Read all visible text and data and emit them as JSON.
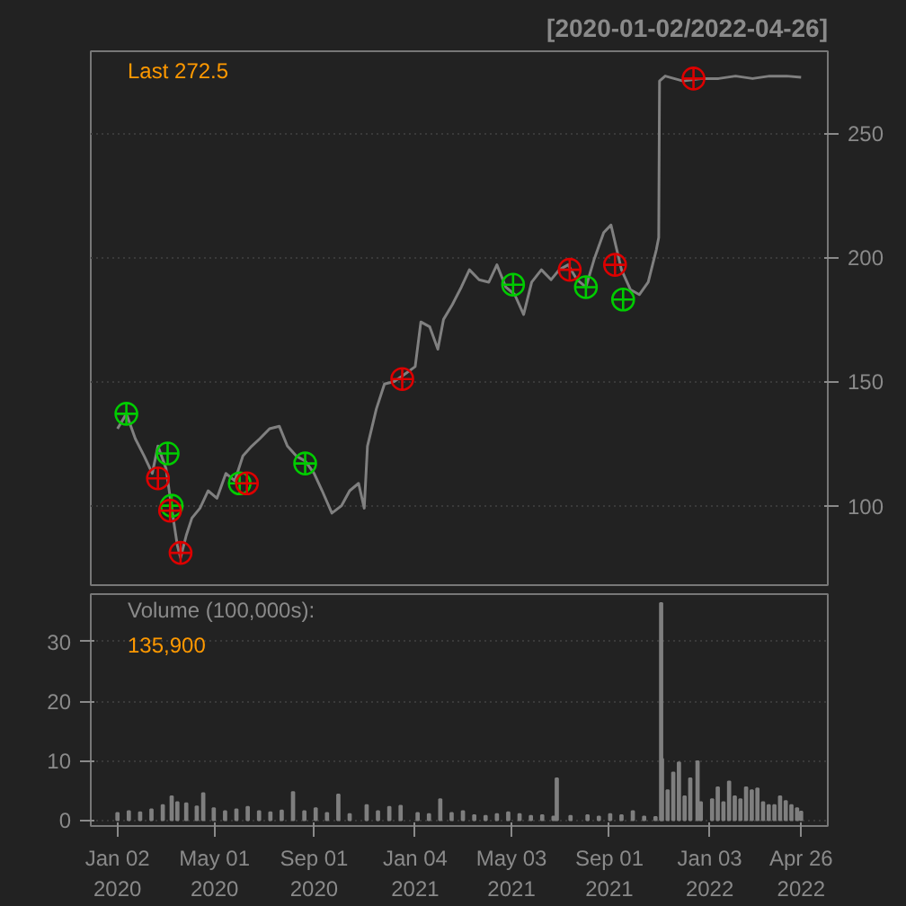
{
  "chart_data": [
    {
      "type": "line",
      "title": "[2020-01-02/2022-04-26]",
      "annotations": [
        "Last 272.5"
      ],
      "xlim": [
        "2019-11-30",
        "2022-05-29"
      ],
      "ylim": [
        68,
        283
      ],
      "yticks": [
        100,
        150,
        200,
        250
      ],
      "grid": "y",
      "tick_labels": "y",
      "line_style": "solid",
      "series": [
        {
          "type": "line",
          "color": "#808080",
          "x": [
            "2020-01-02",
            "2020-01-13",
            "2020-01-24",
            "2020-02-04",
            "2020-02-14",
            "2020-02-21",
            "2020-03-02",
            "2020-03-09",
            "2020-03-16",
            "2020-03-20",
            "2020-03-27",
            "2020-04-03",
            "2020-04-13",
            "2020-04-23",
            "2020-05-04",
            "2020-05-15",
            "2020-05-26",
            "2020-06-05",
            "2020-06-16",
            "2020-06-26",
            "2020-07-08",
            "2020-07-20",
            "2020-07-30",
            "2020-08-10",
            "2020-08-21",
            "2020-09-01",
            "2020-09-11",
            "2020-09-23",
            "2020-10-05",
            "2020-10-15",
            "2020-10-26",
            "2020-11-02",
            "2020-11-06",
            "2020-11-17",
            "2020-11-27",
            "2020-12-09",
            "2020-12-18",
            "2021-01-04",
            "2021-01-11",
            "2021-01-22",
            "2021-02-01",
            "2021-02-08",
            "2021-02-19",
            "2021-03-02",
            "2021-03-12",
            "2021-03-24",
            "2021-04-05",
            "2021-04-15",
            "2021-04-26",
            "2021-05-07",
            "2021-05-18",
            "2021-05-28",
            "2021-06-09",
            "2021-06-21",
            "2021-07-01",
            "2021-07-12",
            "2021-07-23",
            "2021-08-03",
            "2021-08-13",
            "2021-08-25",
            "2021-09-03",
            "2021-09-16",
            "2021-09-27",
            "2021-10-08",
            "2021-10-19",
            "2021-10-29",
            "2021-11-01",
            "2021-11-02",
            "2021-11-09",
            "2021-12-01",
            "2021-12-23",
            "2022-01-14",
            "2022-02-04",
            "2022-02-25",
            "2022-03-18",
            "2022-04-08",
            "2022-04-26"
          ],
          "values": [
            131,
            137,
            127,
            120,
            113,
            124,
            115,
            99,
            84,
            79,
            88,
            95,
            99,
            106,
            103,
            113,
            110,
            120,
            124,
            127,
            131,
            132,
            124,
            120,
            118,
            113,
            106,
            97,
            100,
            106,
            109,
            99,
            124,
            139,
            149,
            150,
            152,
            156,
            174,
            172,
            163,
            175,
            181,
            188,
            195,
            191,
            190,
            197,
            188,
            185,
            177,
            190,
            195,
            191,
            195,
            197,
            191,
            188,
            199,
            210,
            213,
            195,
            187,
            185,
            190,
            203,
            208,
            271,
            273,
            271,
            272,
            272,
            273,
            272,
            273,
            273,
            272.5
          ]
        },
        {
          "type": "scatter",
          "marker": "circle",
          "color": "#00cc00",
          "x": [
            "2020-01-13",
            "2020-03-04",
            "2020-03-09",
            "2020-06-01",
            "2020-08-21",
            "2021-05-05",
            "2021-08-03",
            "2021-09-18"
          ],
          "values": [
            137,
            121,
            100,
            109,
            117,
            189,
            188,
            183
          ]
        },
        {
          "type": "scatter",
          "marker": "circle",
          "color": "#dd0000",
          "x": [
            "2020-02-21",
            "2020-03-07",
            "2020-03-20",
            "2020-06-10",
            "2020-12-19",
            "2021-07-14",
            "2021-09-08",
            "2021-12-14"
          ],
          "values": [
            111,
            98,
            81,
            109,
            151,
            195,
            197,
            272
          ]
        }
      ]
    },
    {
      "type": "bar",
      "annotations": [
        "Volume (100,000s):",
        "135,900"
      ],
      "xlim": [
        "2019-11-30",
        "2022-05-29"
      ],
      "ylim": [
        -1,
        38
      ],
      "yticks": [
        0,
        10,
        20,
        30
      ],
      "grid": "y",
      "xticks": [
        {
          "value": "2020-01-02",
          "label": "Jan 02\n2020"
        },
        {
          "value": "2020-05-01",
          "label": "May 01\n2020"
        },
        {
          "value": "2020-09-01",
          "label": "Sep 01\n2020"
        },
        {
          "value": "2021-01-04",
          "label": "Jan 04\n2021"
        },
        {
          "value": "2021-05-03",
          "label": "May 03\n2021"
        },
        {
          "value": "2021-09-01",
          "label": "Sep 01\n2021"
        },
        {
          "value": "2022-01-03",
          "label": "Jan 03\n2022"
        },
        {
          "value": "2022-04-26",
          "label": "Apr 26\n2022"
        }
      ],
      "series": [
        {
          "color": "#7f7f7f",
          "x": [
            "2020-01-02",
            "2020-01-16",
            "2020-01-30",
            "2020-02-13",
            "2020-02-27",
            "2020-03-09",
            "2020-03-16",
            "2020-03-27",
            "2020-04-09",
            "2020-04-17",
            "2020-04-30",
            "2020-05-14",
            "2020-05-28",
            "2020-06-11",
            "2020-06-25",
            "2020-07-09",
            "2020-07-23",
            "2020-08-06",
            "2020-08-20",
            "2020-09-03",
            "2020-09-17",
            "2020-10-01",
            "2020-10-15",
            "2020-11-05",
            "2020-11-19",
            "2020-12-03",
            "2020-12-17",
            "2021-01-07",
            "2021-01-21",
            "2021-02-04",
            "2021-02-18",
            "2021-03-04",
            "2021-03-18",
            "2021-04-01",
            "2021-04-15",
            "2021-04-29",
            "2021-05-13",
            "2021-05-27",
            "2021-06-10",
            "2021-06-24",
            "2021-06-28",
            "2021-07-15",
            "2021-08-05",
            "2021-08-19",
            "2021-09-02",
            "2021-09-16",
            "2021-09-30",
            "2021-10-14",
            "2021-10-28",
            "2021-11-04",
            "2021-11-05",
            "2021-11-12",
            "2021-11-19",
            "2021-11-26",
            "2021-12-03",
            "2021-12-10",
            "2021-12-19",
            "2021-12-23",
            "2022-01-06",
            "2022-01-13",
            "2022-01-20",
            "2022-01-27",
            "2022-02-03",
            "2022-02-10",
            "2022-02-17",
            "2022-02-24",
            "2022-03-03",
            "2022-03-10",
            "2022-03-17",
            "2022-03-24",
            "2022-03-31",
            "2022-04-07",
            "2022-04-14",
            "2022-04-21",
            "2022-04-26"
          ],
          "values": [
            1.2,
            1.5,
            1.3,
            1.8,
            2.5,
            4.0,
            3.0,
            2.8,
            2.3,
            4.5,
            2.0,
            1.5,
            1.8,
            2.2,
            1.5,
            1.3,
            1.6,
            4.7,
            1.5,
            2.0,
            1.2,
            4.3,
            1.0,
            2.5,
            1.5,
            2.2,
            2.4,
            1.2,
            1.0,
            3.5,
            1.2,
            1.5,
            0.8,
            0.7,
            1.0,
            1.3,
            1.0,
            0.7,
            0.8,
            0.6,
            7.0,
            0.7,
            0.8,
            0.6,
            1.0,
            0.8,
            1.5,
            0.6,
            0.5,
            36.5,
            10.3,
            5,
            8,
            9.7,
            4,
            7,
            9.9,
            3,
            3.5,
            5.5,
            3,
            6.5,
            4,
            3.5,
            5.5,
            5,
            5.3,
            3,
            2.5,
            2.5,
            4,
            3.2,
            2.5,
            2.0,
            1.4
          ]
        }
      ]
    }
  ]
}
